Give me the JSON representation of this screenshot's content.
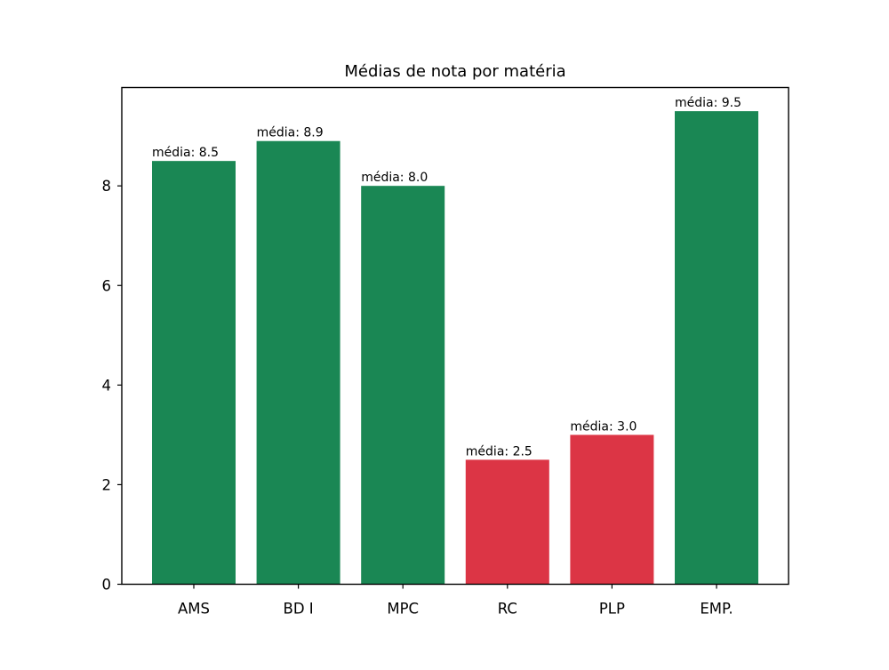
{
  "chart_data": {
    "type": "bar",
    "title": "Médias de nota por matéria",
    "xlabel": "",
    "ylabel": "",
    "categories": [
      "AMS",
      "BD I",
      "MPC",
      "RC",
      "PLP",
      "EMP."
    ],
    "values": [
      8.5,
      8.9,
      8.0,
      2.5,
      3.0,
      9.5
    ],
    "bar_labels": [
      "média: 8.5",
      "média: 8.9",
      "média: 8.0",
      "média: 2.5",
      "média: 3.0",
      "média: 9.5"
    ],
    "bar_colors": [
      "#1a8754",
      "#1a8754",
      "#1a8754",
      "#dc3545",
      "#dc3545",
      "#1a8754"
    ],
    "ylim": [
      0,
      9.975
    ],
    "yticks": [
      0,
      2,
      4,
      6,
      8
    ],
    "grid": false,
    "legend": "none"
  }
}
